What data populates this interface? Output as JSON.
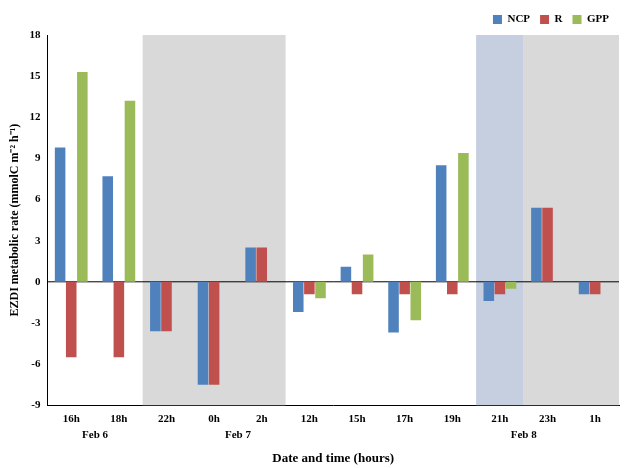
{
  "chart_data": {
    "type": "bar",
    "x_label": "Date and time (hours)",
    "y_label": "EZDI metabolic rate (mmolC m⁻² h⁻¹)",
    "categories": [
      "16h",
      "18h",
      "22h",
      "0h",
      "2h",
      "12h",
      "15h",
      "17h",
      "19h",
      "21h",
      "23h",
      "1h"
    ],
    "date_labels": [
      "Feb 6",
      null,
      null,
      "Feb 7",
      null,
      null,
      null,
      null,
      null,
      "Feb 8",
      null,
      null
    ],
    "series": [
      {
        "name": "NCP",
        "color": "#4f81bd",
        "values": [
          9.8,
          7.7,
          -3.6,
          -7.5,
          2.5,
          -2.2,
          1.1,
          -3.7,
          8.5,
          -1.4,
          5.4,
          -0.9
        ]
      },
      {
        "name": "R",
        "color": "#c0504d",
        "values": [
          -5.5,
          -5.5,
          -3.6,
          -7.5,
          2.5,
          -0.9,
          -0.9,
          -0.9,
          -0.9,
          -0.9,
          5.4,
          -0.9
        ]
      },
      {
        "name": "GPP",
        "color": "#9bbb59",
        "values": [
          15.3,
          13.2,
          null,
          null,
          null,
          -1.2,
          2.0,
          -2.8,
          9.4,
          -0.5,
          null,
          null
        ]
      }
    ],
    "shading": [
      {
        "from": "22h",
        "to": "2h",
        "color": "#d9d9d9"
      },
      {
        "from": "21h",
        "to": "21h",
        "color": "#c5cfe0"
      },
      {
        "from": "23h",
        "to": "1h",
        "color": "#d9d9d9"
      }
    ],
    "ylim": [
      -9,
      18
    ],
    "yticks": [
      -9,
      -6,
      -3,
      0,
      3,
      6,
      9,
      12,
      15,
      18
    ],
    "grid": false,
    "legend": "top right"
  }
}
